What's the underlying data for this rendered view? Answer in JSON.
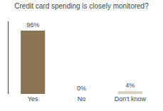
{
  "chart_data": {
    "type": "bar",
    "title": "Credit card spending is closely monitored?",
    "categories": [
      "Yes",
      "No",
      "Don't know"
    ],
    "values": [
      96,
      0,
      4
    ],
    "value_labels": [
      "96%",
      "0%",
      "4%"
    ],
    "colors": [
      "#8B7355",
      "#D8CFC0",
      "#D8CFC0"
    ],
    "ylim": [
      0,
      110
    ],
    "yticks": [],
    "grid": false,
    "data_labels": true,
    "tick_labels": "x"
  }
}
